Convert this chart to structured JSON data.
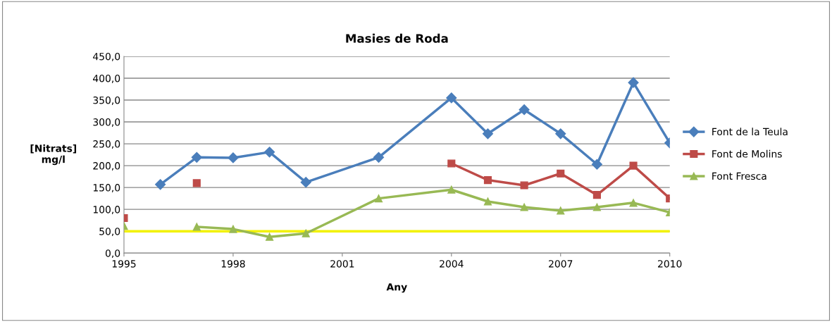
{
  "chart_data": {
    "type": "line",
    "title": "Masies de Roda",
    "xlabel": "Any",
    "ylabel": "[Nitrats]\nmg/l",
    "xlim": [
      1995,
      2010
    ],
    "xticks": [
      1995,
      1998,
      2001,
      2004,
      2007,
      2010
    ],
    "ylim": [
      0,
      450
    ],
    "yticks": [
      {
        "value": 0,
        "label": "0,0"
      },
      {
        "value": 50,
        "label": "50,0"
      },
      {
        "value": 100,
        "label": "100,0"
      },
      {
        "value": 150,
        "label": "150,0"
      },
      {
        "value": 200,
        "label": "200,0"
      },
      {
        "value": 250,
        "label": "250,0"
      },
      {
        "value": 300,
        "label": "300,0"
      },
      {
        "value": 350,
        "label": "350,0"
      },
      {
        "value": 400,
        "label": "400,0"
      },
      {
        "value": 450,
        "label": "450,0"
      }
    ],
    "grid": "y",
    "legend": "right",
    "line_style": "solid",
    "series": [
      {
        "name": "Font de la Teula",
        "color": "#4a7ebb",
        "marker": "diamond",
        "x": [
          1996,
          1997,
          1998,
          1999,
          2000,
          2002,
          2004,
          2005,
          2006,
          2007,
          2008,
          2009,
          2010
        ],
        "values": [
          157,
          219,
          218,
          231,
          162,
          219,
          355,
          273,
          328,
          273,
          203,
          390,
          252
        ]
      },
      {
        "name": "Font de Molins",
        "color": "#be4b48",
        "marker": "square",
        "x": [
          1995,
          1996,
          1997,
          1998,
          2004,
          2005,
          2006,
          2007,
          2008,
          2009,
          2010
        ],
        "values": [
          80,
          null,
          160,
          null,
          205,
          167,
          155,
          182,
          133,
          200,
          125
        ]
      },
      {
        "name": "Font Fresca",
        "color": "#98b954",
        "marker": "triangle",
        "x": [
          1995,
          1996,
          1997,
          1998,
          1999,
          2000,
          2002,
          2004,
          2005,
          2006,
          2007,
          2008,
          2009,
          2010
        ],
        "values": [
          62,
          null,
          60,
          55,
          37,
          45,
          125,
          145,
          118,
          105,
          97,
          105,
          115,
          93
        ]
      }
    ],
    "ref_lines": [
      {
        "axis": "y",
        "value": 50,
        "color": "#f2f200"
      }
    ]
  }
}
